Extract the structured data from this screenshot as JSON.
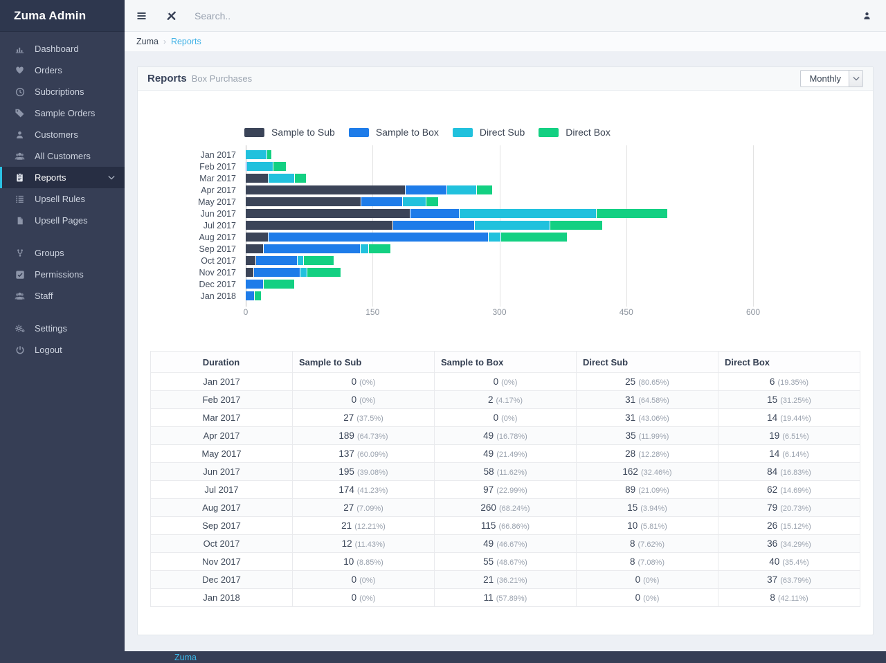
{
  "app": {
    "title": "Zuma Admin"
  },
  "topbar": {
    "search_placeholder": "Search.."
  },
  "breadcrumb": {
    "root": "Zuma",
    "separator": "›",
    "current": "Reports"
  },
  "sidebar": {
    "items": [
      {
        "id": "dashboard",
        "label": "Dashboard",
        "icon": "bar-chart-icon"
      },
      {
        "id": "orders",
        "label": "Orders",
        "icon": "heart-icon"
      },
      {
        "id": "subcriptions",
        "label": "Subcriptions",
        "icon": "clock-icon"
      },
      {
        "id": "sample-orders",
        "label": "Sample Orders",
        "icon": "tags-icon"
      },
      {
        "id": "customers",
        "label": "Customers",
        "icon": "user-icon"
      },
      {
        "id": "all-customers",
        "label": "All Customers",
        "icon": "users-icon"
      },
      {
        "id": "reports",
        "label": "Reports",
        "icon": "clipboard-icon",
        "active": true,
        "chevron": true
      },
      {
        "id": "upsell-rules",
        "label": "Upsell Rules",
        "icon": "list-icon"
      },
      {
        "id": "upsell-pages",
        "label": "Upsell Pages",
        "icon": "file-icon"
      },
      {
        "type": "gap"
      },
      {
        "id": "groups",
        "label": "Groups",
        "icon": "code-fork-icon"
      },
      {
        "id": "permissions",
        "label": "Permissions",
        "icon": "check-square-icon"
      },
      {
        "id": "staff",
        "label": "Staff",
        "icon": "users-icon"
      },
      {
        "type": "gap"
      },
      {
        "id": "settings",
        "label": "Settings",
        "icon": "gears-icon"
      },
      {
        "id": "logout",
        "label": "Logout",
        "icon": "power-icon"
      }
    ]
  },
  "card": {
    "title": "Reports",
    "subtitle": "Box Purchases",
    "period_select": {
      "value": "Monthly"
    }
  },
  "chart_data": {
    "type": "bar",
    "orientation": "horizontal-stacked",
    "categories": [
      "Jan 2017",
      "Feb 2017",
      "Mar 2017",
      "Apr 2017",
      "May 2017",
      "Jun 2017",
      "Jul 2017",
      "Aug 2017",
      "Sep 2017",
      "Oct 2017",
      "Nov 2017",
      "Dec 2017",
      "Jan 2018"
    ],
    "series": [
      {
        "name": "Sample to Sub",
        "color": "#3b4458",
        "values": [
          0,
          0,
          27,
          189,
          137,
          195,
          174,
          27,
          21,
          12,
          10,
          0,
          0
        ]
      },
      {
        "name": "Sample to Box",
        "color": "#1e7ce9",
        "values": [
          0,
          2,
          0,
          49,
          49,
          58,
          97,
          260,
          115,
          49,
          55,
          21,
          11
        ]
      },
      {
        "name": "Direct Sub",
        "color": "#21c1dd",
        "values": [
          25,
          31,
          31,
          35,
          28,
          162,
          89,
          15,
          10,
          8,
          8,
          0,
          0
        ]
      },
      {
        "name": "Direct Box",
        "color": "#13d082",
        "values": [
          6,
          15,
          14,
          19,
          14,
          84,
          62,
          79,
          26,
          36,
          40,
          37,
          8
        ]
      }
    ],
    "xticks": [
      0,
      150,
      300,
      450,
      600
    ],
    "xmax": 600,
    "grid": true,
    "legend_position": "top"
  },
  "table": {
    "columns": [
      "Duration",
      "Sample to Sub",
      "Sample to Box",
      "Direct Sub",
      "Direct Box"
    ],
    "rows": [
      {
        "duration": "Jan 2017",
        "cells": [
          [
            "0",
            "(0%)"
          ],
          [
            "0",
            "(0%)"
          ],
          [
            "25",
            "(80.65%)"
          ],
          [
            "6",
            "(19.35%)"
          ]
        ]
      },
      {
        "duration": "Feb 2017",
        "cells": [
          [
            "0",
            "(0%)"
          ],
          [
            "2",
            "(4.17%)"
          ],
          [
            "31",
            "(64.58%)"
          ],
          [
            "15",
            "(31.25%)"
          ]
        ]
      },
      {
        "duration": "Mar 2017",
        "cells": [
          [
            "27",
            "(37.5%)"
          ],
          [
            "0",
            "(0%)"
          ],
          [
            "31",
            "(43.06%)"
          ],
          [
            "14",
            "(19.44%)"
          ]
        ]
      },
      {
        "duration": "Apr 2017",
        "cells": [
          [
            "189",
            "(64.73%)"
          ],
          [
            "49",
            "(16.78%)"
          ],
          [
            "35",
            "(11.99%)"
          ],
          [
            "19",
            "(6.51%)"
          ]
        ]
      },
      {
        "duration": "May 2017",
        "cells": [
          [
            "137",
            "(60.09%)"
          ],
          [
            "49",
            "(21.49%)"
          ],
          [
            "28",
            "(12.28%)"
          ],
          [
            "14",
            "(6.14%)"
          ]
        ]
      },
      {
        "duration": "Jun 2017",
        "cells": [
          [
            "195",
            "(39.08%)"
          ],
          [
            "58",
            "(11.62%)"
          ],
          [
            "162",
            "(32.46%)"
          ],
          [
            "84",
            "(16.83%)"
          ]
        ]
      },
      {
        "duration": "Jul 2017",
        "cells": [
          [
            "174",
            "(41.23%)"
          ],
          [
            "97",
            "(22.99%)"
          ],
          [
            "89",
            "(21.09%)"
          ],
          [
            "62",
            "(14.69%)"
          ]
        ]
      },
      {
        "duration": "Aug 2017",
        "cells": [
          [
            "27",
            "(7.09%)"
          ],
          [
            "260",
            "(68.24%)"
          ],
          [
            "15",
            "(3.94%)"
          ],
          [
            "79",
            "(20.73%)"
          ]
        ]
      },
      {
        "duration": "Sep 2017",
        "cells": [
          [
            "21",
            "(12.21%)"
          ],
          [
            "115",
            "(66.86%)"
          ],
          [
            "10",
            "(5.81%)"
          ],
          [
            "26",
            "(15.12%)"
          ]
        ]
      },
      {
        "duration": "Oct 2017",
        "cells": [
          [
            "12",
            "(11.43%)"
          ],
          [
            "49",
            "(46.67%)"
          ],
          [
            "8",
            "(7.62%)"
          ],
          [
            "36",
            "(34.29%)"
          ]
        ]
      },
      {
        "duration": "Nov 2017",
        "cells": [
          [
            "10",
            "(8.85%)"
          ],
          [
            "55",
            "(48.67%)"
          ],
          [
            "8",
            "(7.08%)"
          ],
          [
            "40",
            "(35.4%)"
          ]
        ]
      },
      {
        "duration": "Dec 2017",
        "cells": [
          [
            "0",
            "(0%)"
          ],
          [
            "21",
            "(36.21%)"
          ],
          [
            "0",
            "(0%)"
          ],
          [
            "37",
            "(63.79%)"
          ]
        ]
      },
      {
        "duration": "Jan 2018",
        "cells": [
          [
            "0",
            "(0%)"
          ],
          [
            "11",
            "(57.89%)"
          ],
          [
            "0",
            "(0%)"
          ],
          [
            "8",
            "(42.11%)"
          ]
        ]
      }
    ]
  },
  "footer": {
    "link": "Zuma"
  },
  "colors": {
    "sidebar_active_accent": "#2bc1e4",
    "breadcrumb_link": "#41b2e6",
    "footer_link": "#3db9ea"
  }
}
